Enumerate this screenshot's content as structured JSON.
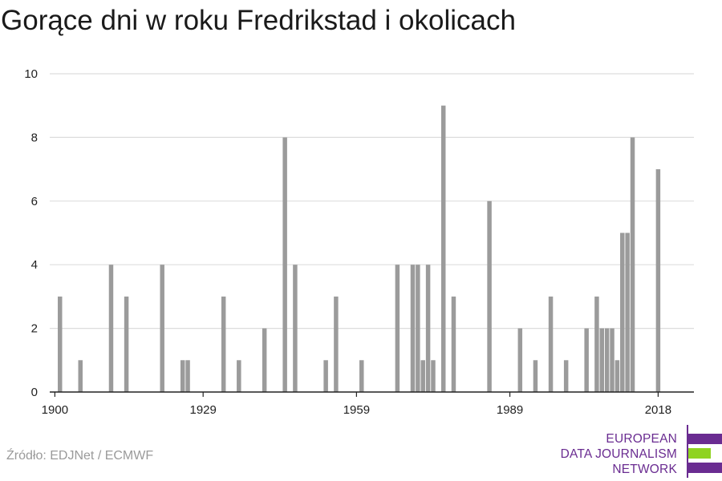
{
  "title": "Gorące dni w roku Fredrikstad i okolicach",
  "source": "Źródło: EDJNet / ECMWF",
  "logo": {
    "lines": [
      "EUROPEAN",
      "DATA JOURNALISM",
      "NETWORK"
    ],
    "colors": {
      "purple": "#6a2c91",
      "green": "#8fd321"
    }
  },
  "colors": {
    "bar": "#9b9b9b",
    "grid": "#dddddd",
    "axis": "#222222"
  },
  "chart_data": {
    "type": "bar",
    "title": "Gorące dni w roku Fredrikstad i okolicach",
    "xlabel": "",
    "ylabel": "",
    "xlim": [
      1899,
      2025
    ],
    "ylim": [
      0,
      10
    ],
    "x_ticks": [
      1900,
      1929,
      1959,
      1989,
      2018
    ],
    "y_ticks": [
      0,
      2,
      4,
      6,
      8,
      10
    ],
    "grid": true,
    "x": [
      1901,
      1905,
      1911,
      1914,
      1921,
      1925,
      1926,
      1933,
      1936,
      1941,
      1945,
      1947,
      1953,
      1955,
      1960,
      1967,
      1970,
      1971,
      1972,
      1973,
      1974,
      1976,
      1978,
      1985,
      1991,
      1994,
      1997,
      2000,
      2004,
      2006,
      2007,
      2008,
      2009,
      2010,
      2011,
      2012,
      2013,
      2018
    ],
    "values": [
      3,
      1,
      4,
      3,
      4,
      1,
      1,
      3,
      1,
      2,
      8,
      4,
      1,
      3,
      1,
      4,
      4,
      4,
      1,
      4,
      1,
      9,
      3,
      6,
      2,
      1,
      3,
      1,
      2,
      3,
      2,
      2,
      2,
      1,
      5,
      5,
      8,
      7
    ]
  }
}
